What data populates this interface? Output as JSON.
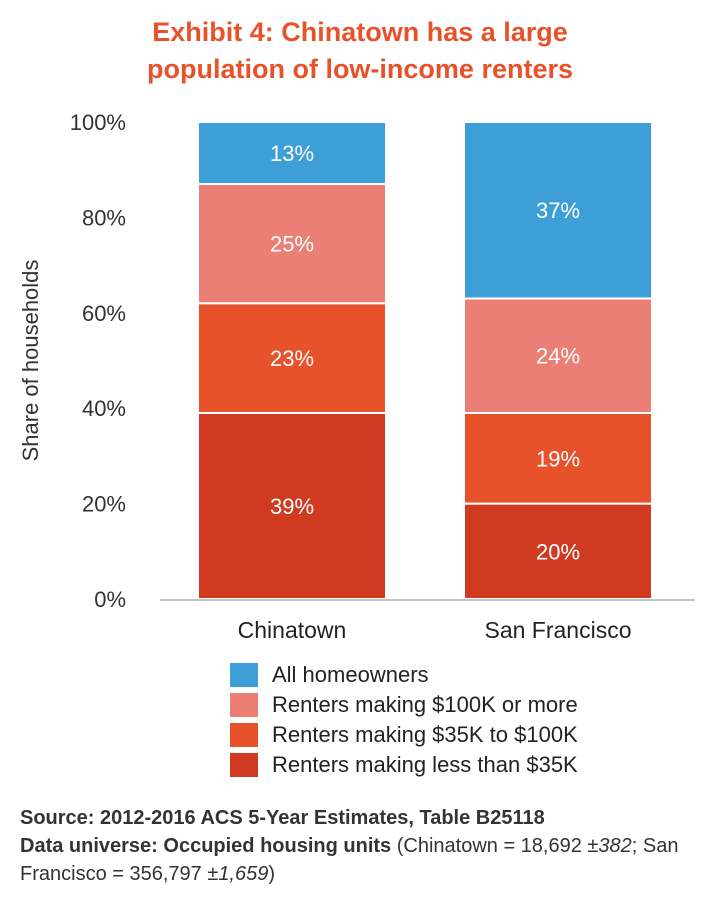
{
  "chart_data": {
    "type": "bar",
    "stacked": true,
    "title_line1": "Exhibit 4: Chinatown has a large",
    "title_line2": "population of low-income renters",
    "ylabel": "Share of households",
    "ylim": [
      0,
      100
    ],
    "yticks": [
      0,
      20,
      40,
      60,
      80,
      100
    ],
    "ytick_labels": [
      "0%",
      "20%",
      "40%",
      "60%",
      "80%",
      "100%"
    ],
    "categories": [
      "Chinatown",
      "San Francisco"
    ],
    "series": [
      {
        "name": "Renters making less than $35K",
        "color": "#cf3a20",
        "values": [
          39,
          20
        ],
        "labels": [
          "39%",
          "20%"
        ]
      },
      {
        "name": "Renters making $35K to $100K",
        "color": "#e8522a",
        "values": [
          23,
          19
        ],
        "labels": [
          "23%",
          "19%"
        ]
      },
      {
        "name": "Renters making $100K or more",
        "color": "#ec7f75",
        "values": [
          25,
          24
        ],
        "labels": [
          "25%",
          "24%"
        ]
      },
      {
        "name": "All homeowners",
        "color": "#3e9fd8",
        "values": [
          13,
          37
        ],
        "labels": [
          "13%",
          "37%"
        ]
      }
    ],
    "legend_order": [
      3,
      2,
      1,
      0
    ],
    "legend_placement": "bottom",
    "grid": false
  },
  "footer": {
    "source": "Source: 2012-2016 ACS 5-Year Estimates, Table B25118",
    "universe_label": "Data universe: Occupied housing units",
    "universe_text_1": " (Chinatown = 18,692 ±",
    "chinatown_moe": "382",
    "universe_text_2": "; San Francisco = 356,797 ±",
    "sf_moe": "1,659",
    "universe_text_3": ")"
  }
}
